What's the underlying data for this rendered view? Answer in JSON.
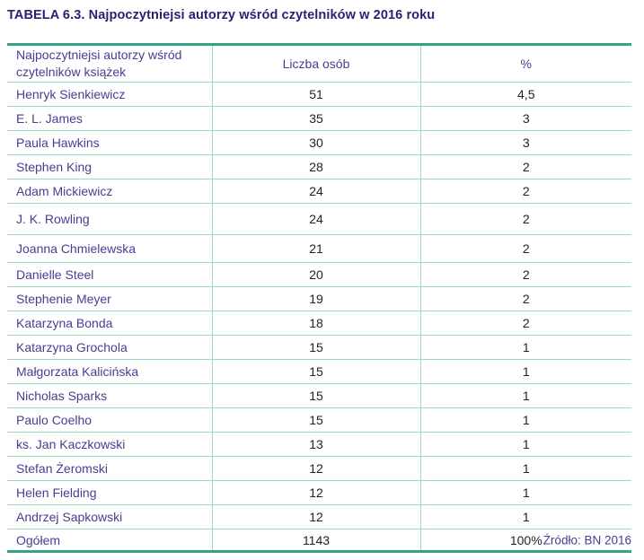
{
  "page": {
    "title": "TABELA 6.3. Najpoczytniejsi autorzy wśród czytelników w 2016 roku"
  },
  "table": {
    "headers": {
      "authors": "Najpoczytniejsi autorzy wśród czytelników książek",
      "count": "Liczba osób",
      "percent": "%"
    },
    "rows": [
      {
        "name": "Henryk Sienkiewicz",
        "count": "51",
        "percent": "4,5"
      },
      {
        "name": "E. L. James",
        "count": "35",
        "percent": "3"
      },
      {
        "name": "Paula Hawkins",
        "count": "30",
        "percent": "3"
      },
      {
        "name": "Stephen King",
        "count": "28",
        "percent": "2"
      },
      {
        "name": "Adam Mickiewicz",
        "count": "24",
        "percent": "2"
      },
      {
        "name": "J. K. Rowling",
        "count": "24",
        "percent": "2"
      },
      {
        "name": "Joanna Chmielewska",
        "count": "21",
        "percent": "2"
      },
      {
        "name": "Danielle Steel",
        "count": "20",
        "percent": "2"
      },
      {
        "name": "Stephenie Meyer",
        "count": "19",
        "percent": "2"
      },
      {
        "name": "Katarzyna Bonda",
        "count": "18",
        "percent": "2"
      },
      {
        "name": "Katarzyna Grochola",
        "count": "15",
        "percent": "1"
      },
      {
        "name": "Małgorzata Kalicińska",
        "count": "15",
        "percent": "1"
      },
      {
        "name": "Nicholas Sparks",
        "count": "15",
        "percent": "1"
      },
      {
        "name": "Paulo Coelho",
        "count": "15",
        "percent": "1"
      },
      {
        "name": "ks. Jan Kaczkowski",
        "count": "13",
        "percent": "1"
      },
      {
        "name": "Stefan Żeromski",
        "count": "12",
        "percent": "1"
      },
      {
        "name": "Helen Fielding",
        "count": "12",
        "percent": "1"
      },
      {
        "name": "Andrzej Sapkowski",
        "count": "12",
        "percent": "1"
      }
    ],
    "footer": {
      "label": "Ogółem",
      "count": "1143",
      "percent": "100%"
    }
  },
  "source_note": "Źródło: BN 2016",
  "colors": {
    "border_thick_teal": "#36A389",
    "border_thin_teal": "#9BD8C6",
    "title_purple": "#301C72",
    "text_purple": "#4E3A92",
    "number_black": "#232323",
    "background": "#FFFFFF"
  }
}
